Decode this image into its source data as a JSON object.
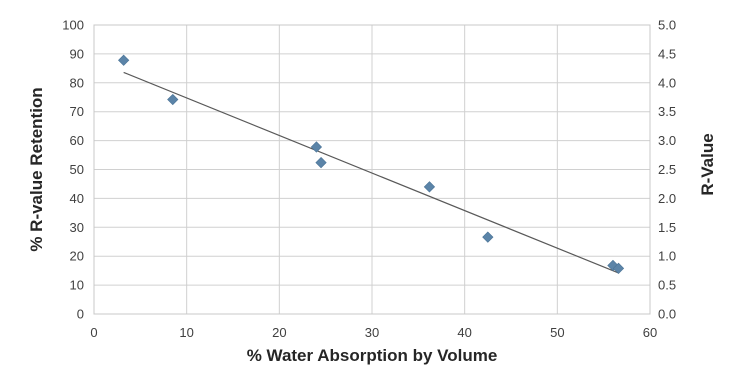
{
  "chart_data": {
    "type": "scatter",
    "title": "",
    "xlabel": "% Water Absorption by Volume",
    "ylabel": "% R-value Retention",
    "y2label": "R-Value",
    "xlim": [
      0,
      60
    ],
    "ylim": [
      0,
      100
    ],
    "y2lim": [
      0,
      5
    ],
    "x_ticks": [
      "0",
      "10",
      "20",
      "30",
      "40",
      "50",
      "60"
    ],
    "y_ticks": [
      "0",
      "10",
      "20",
      "30",
      "40",
      "50",
      "60",
      "70",
      "80",
      "90",
      "100"
    ],
    "y2_ticks": [
      "0.0",
      "0.5",
      "1.0",
      "1.5",
      "2.0",
      "2.5",
      "3.0",
      "3.5",
      "4.0",
      "4.5",
      "5.0"
    ],
    "grid": true,
    "legend": "none",
    "marker_color": "#5b84a8",
    "trendline_color": "#595959",
    "series": [
      {
        "x": [
          3.2,
          8.5,
          24.0,
          24.5,
          36.2,
          42.5,
          56.0,
          56.6
        ],
        "y": [
          87.8,
          74.2,
          57.8,
          52.4,
          44.0,
          26.6,
          16.8,
          15.8
        ]
      }
    ],
    "trendline": {
      "x": [
        3.2,
        56.6
      ],
      "y": [
        83.6,
        14.2
      ]
    }
  }
}
